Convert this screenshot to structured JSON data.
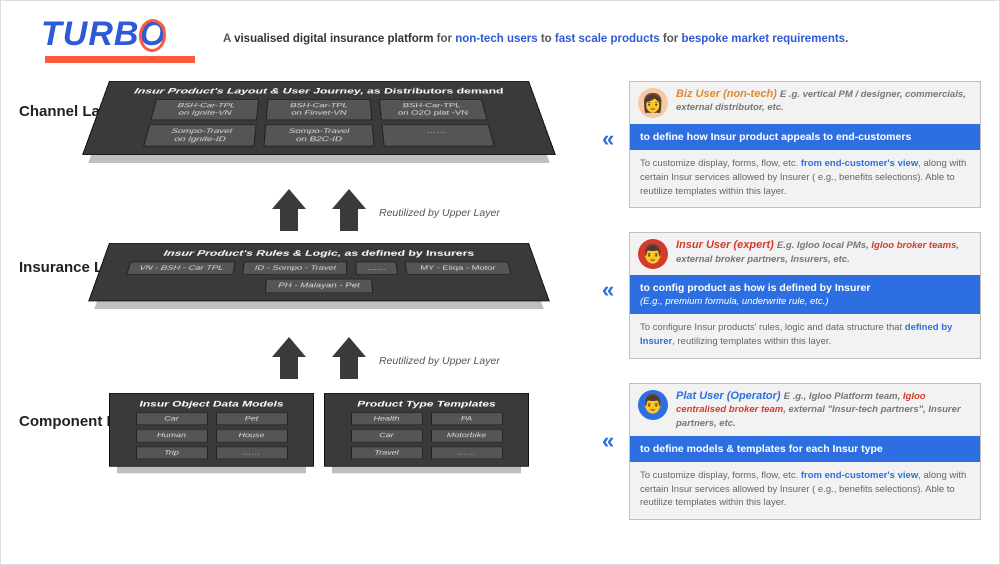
{
  "brand": {
    "name": "TURBO",
    "underline_color": "#ff5a3c",
    "logo_color": "#2d5ad6"
  },
  "tagline": {
    "p1": "A ",
    "p2": "visualised digital insurance platform",
    "p3": " for ",
    "p4": "non-tech users",
    "p5": " to ",
    "p6": "fast scale products",
    "p7": " for ",
    "p8": "bespoke market requirements",
    "p9": "."
  },
  "layers": {
    "channel": {
      "label": "Channel Layer",
      "slab_title": "Insur Product's Layout & User Journey, as Distributors demand",
      "pills": [
        "BSH-Car-TPL\non Ignite-VN",
        "BSH-Car-TPL\non Finvet-VN",
        "BSH-Car-TPL\non O2O plat -VN",
        "Sompo-Travel\non Ignite-ID",
        "Sompo-Travel\non B2C-ID",
        "……"
      ]
    },
    "insurance": {
      "label": "Insurance Layer",
      "slab_title": "Insur Product's Rules & Logic, as defined by Insurers",
      "pills": [
        "VN - BSH - Car TPL",
        "ID - Sompo - Travel",
        "MY - Eliqa - Motor",
        "PH - Malayan - Pet",
        "……"
      ]
    },
    "component": {
      "label": "Component Layer",
      "left_title": "Insur Object Data Models",
      "left_pills": [
        "Car",
        "Pet",
        "Human",
        "House",
        "Trip",
        "……"
      ],
      "right_title": "Product Type Templates",
      "right_pills": [
        "Health",
        "PA",
        "Car",
        "Motorbike",
        "Travel",
        "……"
      ]
    },
    "reuse_label": "Reutilized by Upper Layer"
  },
  "personas": {
    "biz": {
      "title": "Biz User (non-tech)",
      "title_color": "#e08a2d",
      "sub_plain": "E .g. vertical PM / designer, commercials, external distributor, etc.",
      "band": "to define how Insur product appeals to end-customers",
      "band_sub": "",
      "body_pre": "To customize display, forms, flow, etc.  ",
      "body_blue": "from end-customer's view",
      "body_post": ", along with certain Insur services allowed by Insurer ( e.g., benefits selections). Able to reutilize templates within this layer.",
      "avatar_bg": "#f6c9a0",
      "avatar_glyph": "👩"
    },
    "insur": {
      "title": "Insur User (expert)",
      "title_color": "#d63a2d",
      "sub_pre": "E.g. Igloo local PMs, ",
      "sub_red": "Igloo broker teams",
      "sub_post": ", external broker partners, Insurers, etc.",
      "band": "to config product as how is defined by Insurer",
      "band_sub": "(E.g., premium formula, underwrite rule, etc.)",
      "body_pre": "To configure Insur products' rules, logic and data structure that ",
      "body_blue": "defined by Insurer",
      "body_post": ", reutilizing templates within this layer.",
      "avatar_bg": "#d63a2d",
      "avatar_glyph": "👨"
    },
    "plat": {
      "title": "Plat User (Operator)",
      "title_color": "#2d6fe0",
      "sub_pre": "E .g., Igloo Platform team, ",
      "sub_red": "Igloo centralised broker team",
      "sub_post": ", external \"Insur-tech partners\", Insurer partners, etc.",
      "band": "to define models & templates for each Insur type",
      "band_sub": "",
      "body_pre": "To customize display, forms, flow, etc.  ",
      "body_blue": "from end-customer's view",
      "body_post": ", along with certain Insur services allowed by Insurer ( e.g., benefits selections). Able to reutilize templates within this layer.",
      "avatar_bg": "#2d6fe0",
      "avatar_glyph": "👨"
    }
  },
  "colors": {
    "slab_bg": "#3a3a3a",
    "pill_bg": "#555555",
    "band_bg": "#2d6fe0",
    "card_bg": "#f2f2f2",
    "card_border": "#bfbfbf"
  }
}
